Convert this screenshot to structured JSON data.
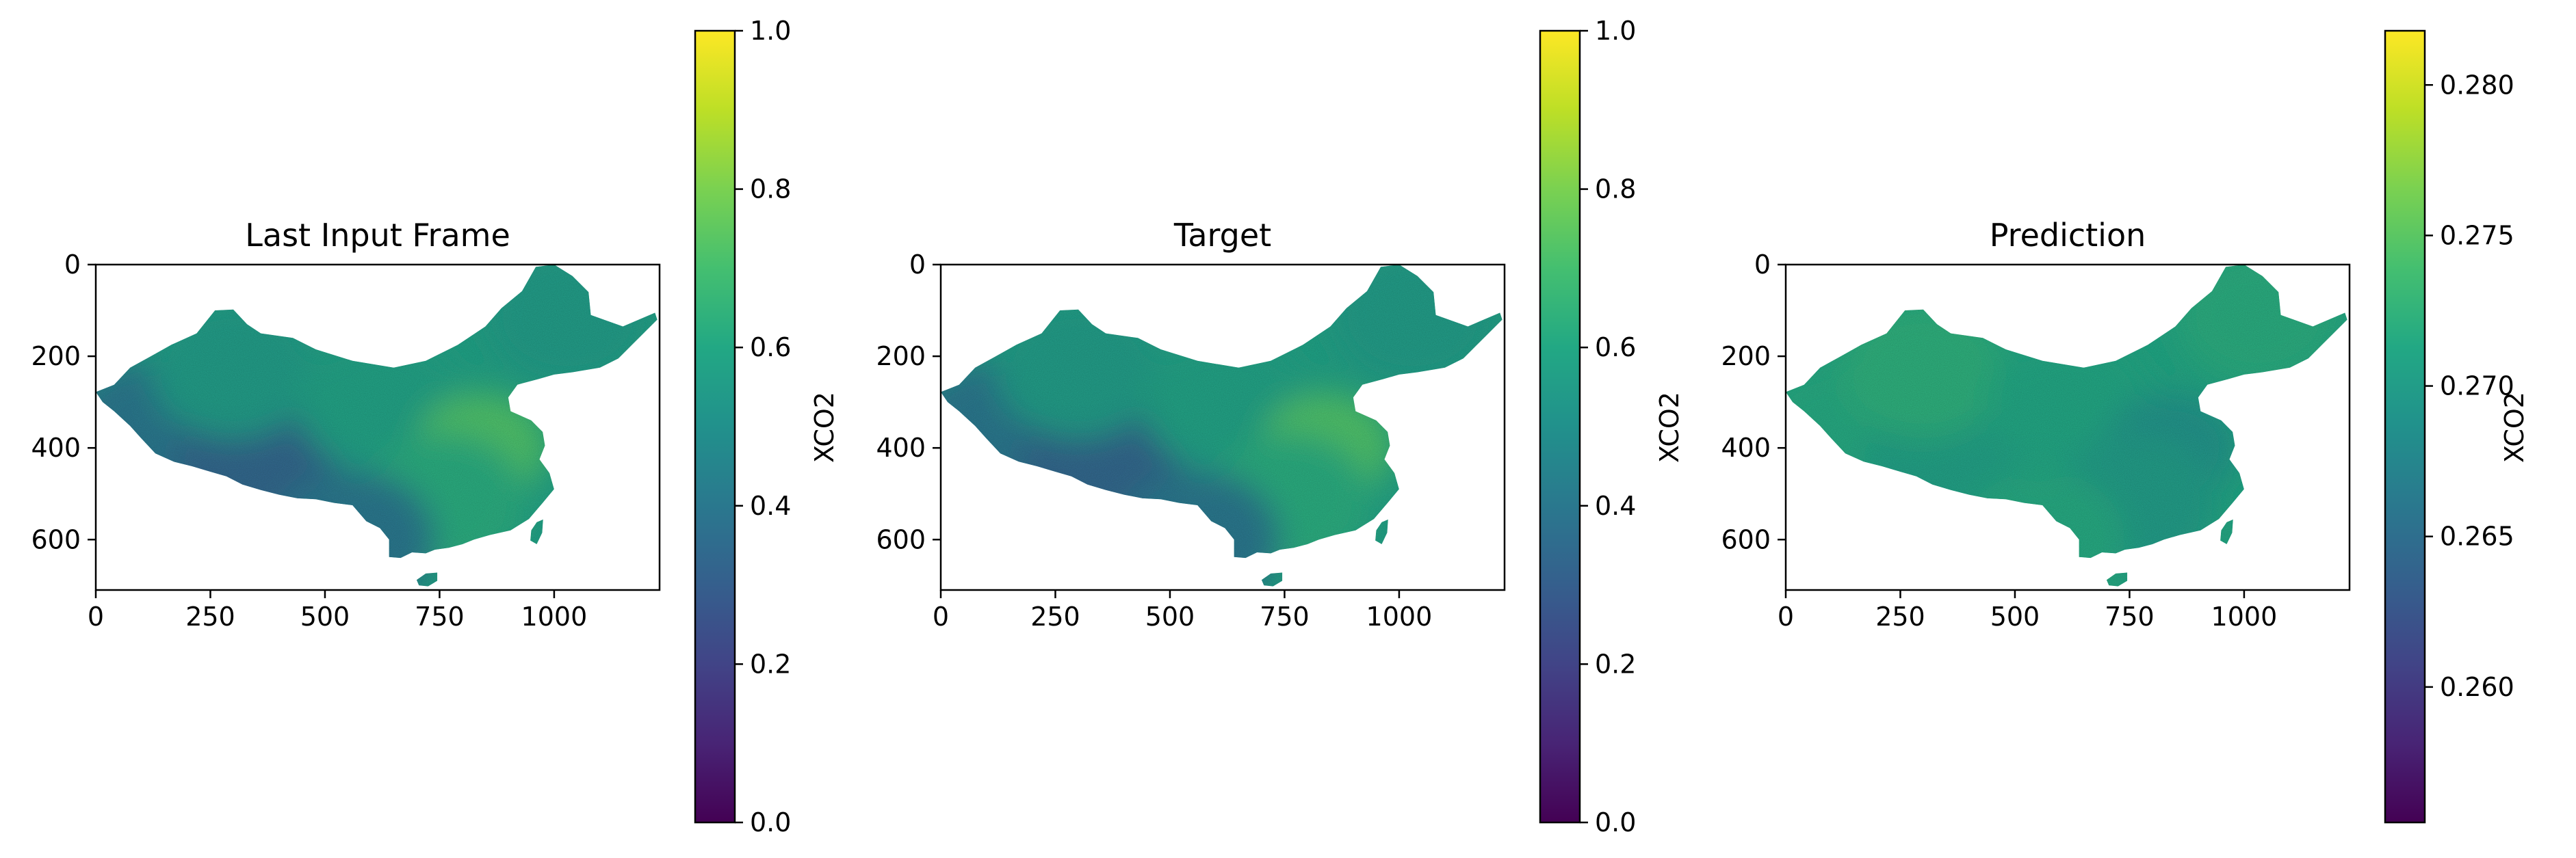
{
  "chart_data": [
    {
      "type": "heatmap",
      "title": "Last Input Frame",
      "x_ticks": [
        0,
        250,
        500,
        750,
        1000
      ],
      "y_ticks": [
        0,
        200,
        400,
        600
      ],
      "xlim": [
        0,
        1230
      ],
      "ylim": [
        710,
        0
      ],
      "colorbar": {
        "label": "XCO2",
        "colormap": "viridis",
        "range": [
          0.0,
          1.0
        ],
        "ticks": [
          "0.0",
          "0.2",
          "0.4",
          "0.6",
          "0.8",
          "1.0"
        ],
        "tick_values": [
          0.0,
          0.2,
          0.4,
          0.6,
          0.8,
          1.0
        ]
      },
      "field": {
        "west": 0.4,
        "tibet": 0.33,
        "northwest": 0.55,
        "north": 0.58,
        "northeast": 0.55,
        "east": 0.72,
        "south": 0.62,
        "southwest": 0.4,
        "hainan": 0.5,
        "taiwan": 0.55
      }
    },
    {
      "type": "heatmap",
      "title": "Target",
      "x_ticks": [
        0,
        250,
        500,
        750,
        1000
      ],
      "y_ticks": [
        0,
        200,
        400,
        600
      ],
      "xlim": [
        0,
        1230
      ],
      "ylim": [
        710,
        0
      ],
      "colorbar": {
        "label": "XCO2",
        "colormap": "viridis",
        "range": [
          0.0,
          1.0
        ],
        "ticks": [
          "0.0",
          "0.2",
          "0.4",
          "0.6",
          "0.8",
          "1.0"
        ],
        "tick_values": [
          0.0,
          0.2,
          0.4,
          0.6,
          0.8,
          1.0
        ]
      },
      "field": {
        "west": 0.4,
        "tibet": 0.33,
        "northwest": 0.55,
        "north": 0.58,
        "northeast": 0.55,
        "east": 0.72,
        "south": 0.62,
        "southwest": 0.4,
        "hainan": 0.5,
        "taiwan": 0.55
      }
    },
    {
      "type": "heatmap",
      "title": "Prediction",
      "x_ticks": [
        0,
        250,
        500,
        750,
        1000
      ],
      "y_ticks": [
        0,
        200,
        400,
        600
      ],
      "xlim": [
        0,
        1230
      ],
      "ylim": [
        710,
        0
      ],
      "colorbar": {
        "label": "XCO2",
        "colormap": "viridis",
        "range": [
          0.2555,
          0.2818
        ],
        "ticks": [
          "0.260",
          "0.265",
          "0.270",
          "0.275",
          "0.280"
        ],
        "tick_values": [
          0.26,
          0.265,
          0.27,
          0.275,
          0.28
        ]
      },
      "field": {
        "west": 0.2715,
        "tibet": 0.2705,
        "northwest": 0.2722,
        "north": 0.2712,
        "northeast": 0.2718,
        "east": 0.269,
        "south": 0.27,
        "southwest": 0.2715,
        "hainan": 0.272,
        "taiwan": 0.272
      }
    }
  ]
}
